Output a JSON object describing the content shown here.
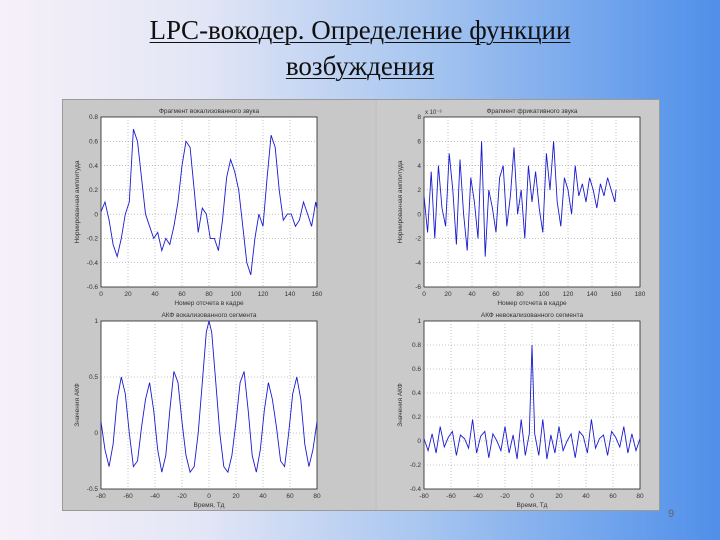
{
  "slide": {
    "title_line1": "LPC-вокодер. Определение функции",
    "title_line2": "возбуждения",
    "page_number": "9"
  },
  "colors": {
    "plot_line": "#1a1ad0",
    "plot_bg": "#ffffff",
    "figure_bg": "#c6c6c6",
    "grid": "#888888"
  },
  "chart_data": [
    {
      "type": "line",
      "title": "Фрагмент вокализованного звука",
      "xlabel": "Номер отсчета в кадре",
      "ylabel": "Нормированная амплитуда",
      "xlim": [
        0,
        160
      ],
      "ylim": [
        -0.6,
        0.8
      ],
      "xticks": [
        "0",
        "20",
        "40",
        "60",
        "80",
        "100",
        "120",
        "140",
        "160"
      ],
      "yticks": [
        "-0.6",
        "-0.4",
        "-0.2",
        "0",
        "0.2",
        "0.4",
        "0.6",
        "0.8"
      ],
      "exponent": "",
      "grid": true,
      "x": [
        0,
        3,
        6,
        9,
        12,
        15,
        18,
        21,
        24,
        27,
        30,
        33,
        36,
        39,
        42,
        45,
        48,
        51,
        54,
        57,
        60,
        63,
        66,
        69,
        72,
        75,
        78,
        81,
        84,
        87,
        90,
        93,
        96,
        99,
        102,
        105,
        108,
        111,
        114,
        117,
        120,
        123,
        126,
        129,
        132,
        135,
        138,
        141,
        144,
        147,
        150,
        153,
        156,
        159,
        160
      ],
      "y": [
        0.02,
        0.1,
        -0.05,
        -0.25,
        -0.35,
        -0.2,
        0.0,
        0.1,
        0.7,
        0.6,
        0.3,
        0.0,
        -0.1,
        -0.2,
        -0.15,
        -0.3,
        -0.2,
        -0.25,
        -0.1,
        0.1,
        0.4,
        0.6,
        0.55,
        0.2,
        -0.15,
        0.05,
        0.0,
        -0.2,
        -0.2,
        -0.3,
        -0.05,
        0.3,
        0.45,
        0.35,
        0.2,
        -0.1,
        -0.4,
        -0.5,
        -0.2,
        0.0,
        -0.1,
        0.3,
        0.65,
        0.55,
        0.2,
        -0.05,
        0.0,
        0.0,
        -0.1,
        -0.05,
        0.1,
        0.0,
        -0.1,
        0.1,
        0.05
      ]
    },
    {
      "type": "line",
      "title": "Фрагмент фрикативного звука",
      "xlabel": "Номер отсчета в кадре",
      "ylabel": "Нормированная амплитуда",
      "xlim": [
        0,
        180
      ],
      "ylim": [
        -6,
        8
      ],
      "xticks": [
        "0",
        "20",
        "40",
        "60",
        "80",
        "100",
        "120",
        "140",
        "160",
        "180"
      ],
      "yticks": [
        "-6",
        "-4",
        "-2",
        "0",
        "2",
        "4",
        "6",
        "8"
      ],
      "exponent": "x 10⁻³",
      "grid": true,
      "x": [
        0,
        3,
        6,
        9,
        12,
        15,
        18,
        21,
        24,
        27,
        30,
        33,
        36,
        39,
        42,
        45,
        48,
        51,
        54,
        57,
        60,
        63,
        66,
        69,
        72,
        75,
        78,
        81,
        84,
        87,
        90,
        93,
        96,
        99,
        102,
        105,
        108,
        111,
        114,
        117,
        120,
        123,
        126,
        129,
        132,
        135,
        138,
        141,
        144,
        147,
        150,
        153,
        156,
        159,
        160
      ],
      "y": [
        1.5,
        -1.5,
        3.5,
        -2,
        4,
        0.5,
        -1,
        5,
        2,
        -2.5,
        4.5,
        0,
        -3,
        3,
        1,
        -2,
        6,
        -3.5,
        2,
        0.5,
        -1.5,
        3,
        4,
        -1,
        1.5,
        5.5,
        0,
        2,
        -2,
        4,
        1,
        3.5,
        0.5,
        -1.5,
        5,
        2,
        6,
        1,
        -1,
        3,
        2,
        0,
        4,
        1.5,
        2.5,
        1,
        3,
        2,
        0.5,
        2.5,
        1.5,
        3,
        2,
        1,
        2
      ]
    },
    {
      "type": "line",
      "title": "АКФ вокализованного сегмента",
      "xlabel": "Время, Тд",
      "ylabel": "Значения АКФ",
      "xlim": [
        -80,
        80
      ],
      "ylim": [
        -0.5,
        1
      ],
      "xticks": [
        "-80",
        "-60",
        "-40",
        "-20",
        "0",
        "20",
        "40",
        "60",
        "80"
      ],
      "yticks": [
        "-0.5",
        "0",
        "0.5",
        "1"
      ],
      "exponent": "",
      "grid": true,
      "x": [
        -80,
        -77,
        -74,
        -71,
        -68,
        -65,
        -62,
        -59,
        -56,
        -53,
        -50,
        -47,
        -44,
        -41,
        -38,
        -35,
        -32,
        -29,
        -26,
        -23,
        -20,
        -17,
        -14,
        -11,
        -8,
        -5,
        -2,
        0,
        2,
        5,
        8,
        11,
        14,
        17,
        20,
        23,
        26,
        29,
        32,
        35,
        38,
        41,
        44,
        47,
        50,
        53,
        56,
        59,
        62,
        65,
        68,
        71,
        74,
        77,
        80
      ],
      "y": [
        0.1,
        -0.15,
        -0.3,
        -0.1,
        0.3,
        0.5,
        0.35,
        0.0,
        -0.3,
        -0.25,
        0.05,
        0.3,
        0.45,
        0.2,
        -0.15,
        -0.35,
        -0.2,
        0.2,
        0.55,
        0.45,
        0.1,
        -0.2,
        -0.35,
        -0.3,
        0.0,
        0.45,
        0.9,
        1.0,
        0.9,
        0.45,
        0.0,
        -0.3,
        -0.35,
        -0.2,
        0.1,
        0.45,
        0.55,
        0.2,
        -0.2,
        -0.35,
        -0.15,
        0.2,
        0.45,
        0.3,
        0.05,
        -0.25,
        -0.3,
        0.0,
        0.35,
        0.5,
        0.3,
        -0.1,
        -0.3,
        -0.15,
        0.1
      ]
    },
    {
      "type": "line",
      "title": "АКФ невокализованного сегмента",
      "xlabel": "Время, Тд",
      "ylabel": "Значения АКФ",
      "xlim": [
        -80,
        80
      ],
      "ylim": [
        -0.4,
        1
      ],
      "xticks": [
        "-80",
        "-60",
        "-40",
        "-20",
        "0",
        "20",
        "40",
        "60",
        "80"
      ],
      "yticks": [
        "-0.4",
        "-0.2",
        "0",
        "0.2",
        "0.4",
        "0.6",
        "0.8",
        "1"
      ],
      "exponent": "",
      "grid": true,
      "x": [
        -80,
        -77,
        -74,
        -71,
        -68,
        -65,
        -62,
        -59,
        -56,
        -53,
        -50,
        -47,
        -44,
        -41,
        -38,
        -35,
        -32,
        -29,
        -26,
        -23,
        -20,
        -17,
        -14,
        -11,
        -8,
        -5,
        -2,
        0,
        2,
        5,
        8,
        11,
        14,
        17,
        20,
        23,
        26,
        29,
        32,
        35,
        38,
        41,
        44,
        47,
        50,
        53,
        56,
        59,
        62,
        65,
        68,
        71,
        74,
        77,
        80
      ],
      "y": [
        0.02,
        -0.08,
        0.06,
        -0.1,
        0.12,
        -0.05,
        0.03,
        0.08,
        -0.12,
        0.05,
        0.02,
        -0.06,
        0.18,
        -0.1,
        0.04,
        0.08,
        -0.14,
        0.06,
        0.0,
        -0.08,
        0.12,
        -0.1,
        0.05,
        -0.15,
        0.18,
        -0.12,
        0.06,
        0.8,
        0.06,
        -0.12,
        0.18,
        -0.15,
        0.05,
        -0.1,
        0.12,
        -0.08,
        0.0,
        0.06,
        -0.14,
        0.08,
        0.04,
        -0.1,
        0.18,
        -0.06,
        0.02,
        0.05,
        -0.12,
        0.08,
        0.03,
        -0.05,
        0.12,
        -0.1,
        0.06,
        -0.08,
        0.02
      ]
    }
  ]
}
